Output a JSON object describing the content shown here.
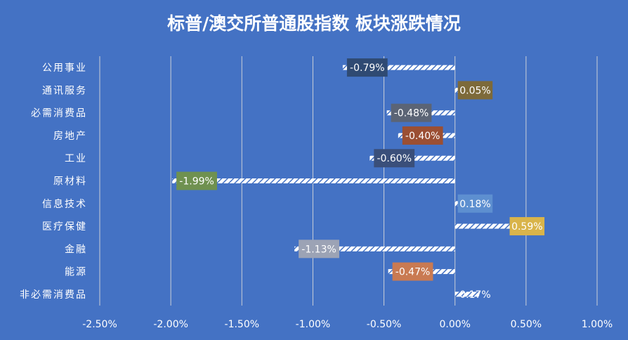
{
  "chart_data": {
    "type": "bar",
    "orientation": "horizontal",
    "title": "标普/澳交所普通股指数 板块涨跌情况",
    "categories": [
      "公用事业",
      "通讯服务",
      "必需消费品",
      "房地产",
      "工业",
      "原材料",
      "信息技术",
      "医疗保健",
      "金融",
      "能源",
      "非必需消费品"
    ],
    "values": [
      -0.79,
      0.05,
      -0.48,
      -0.4,
      -0.6,
      -1.99,
      0.18,
      0.59,
      -1.13,
      -0.47,
      0.17
    ],
    "data_labels": [
      "-0.79%",
      "0.05%",
      "-0.48%",
      "-0.40%",
      "-0.60%",
      "-1.99%",
      "0.18%",
      "0.59%",
      "-1.13%",
      "-0.47%",
      "0.17%"
    ],
    "label_colors": [
      "#2f4a73",
      "#7d6a3a",
      "#5b6475",
      "#9b4f33",
      "#3a4f7a",
      "#6f9150",
      "#5d8fd0",
      "#d9b44a",
      "#9ca3b5",
      "#c97a52",
      null
    ],
    "xlim": [
      -2.5,
      1.0
    ],
    "x_ticks": [
      "-2.50%",
      "-2.00%",
      "-1.50%",
      "-1.00%",
      "-0.50%",
      "0.00%",
      "0.50%",
      "1.00%"
    ],
    "x_tick_values": [
      -2.5,
      -2.0,
      -1.5,
      -1.0,
      -0.5,
      0.0,
      0.5,
      1.0
    ],
    "grid": true,
    "colors": {
      "background": "#4472c4",
      "bar_pattern": "#ffffff",
      "text": "#ffffff"
    }
  }
}
